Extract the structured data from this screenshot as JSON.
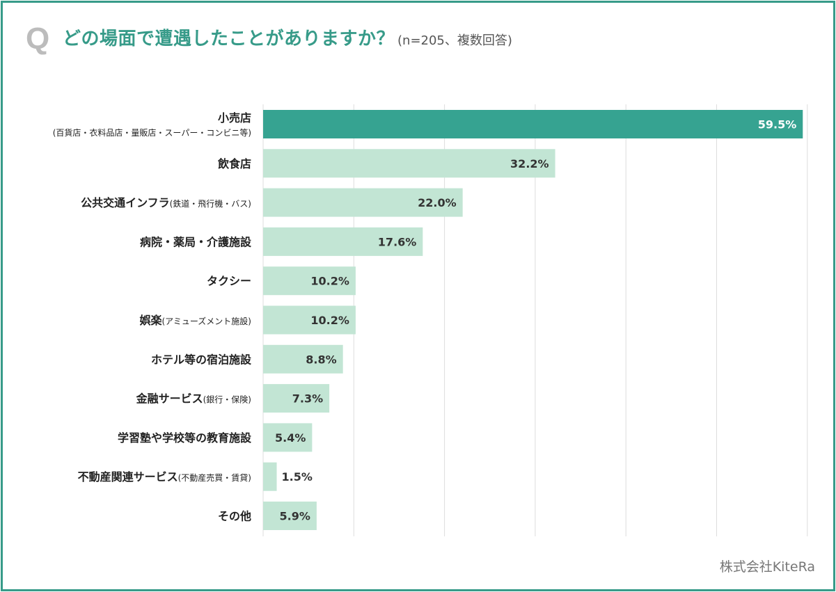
{
  "header": {
    "q_mark": "Q",
    "title": "どの場面で遭遇したことがありますか？",
    "note": "(n=205、複数回答)"
  },
  "footer": {
    "credit": "株式会社KiteRa"
  },
  "colors": {
    "accent": "#379b89",
    "bar_highlight": "#36a391",
    "bar_default": "#c2e5d4",
    "value_on_highlight": "#ffffff",
    "value_default": "#333333",
    "grid": "#dddddd"
  },
  "chart_data": {
    "type": "bar",
    "orientation": "horizontal",
    "title": "どの場面で遭遇したことがありますか？",
    "xlabel": "",
    "ylabel": "",
    "xlim": [
      0,
      60
    ],
    "grid": true,
    "unit": "%",
    "categories": [
      {
        "label": "小売店",
        "sub": "(百貨店・衣料品店・量販店・スーパー・コンビニ等)",
        "note": ""
      },
      {
        "label": "飲食店",
        "sub": "",
        "note": ""
      },
      {
        "label": "公共交通インフラ",
        "sub": "",
        "note": "(鉄道・飛行機・バス)"
      },
      {
        "label": "病院・薬局・介護施設",
        "sub": "",
        "note": ""
      },
      {
        "label": "タクシー",
        "sub": "",
        "note": ""
      },
      {
        "label": "娯楽",
        "sub": "",
        "note": "(アミューズメント施設)"
      },
      {
        "label": "ホテル等の宿泊施設",
        "sub": "",
        "note": ""
      },
      {
        "label": "金融サービス",
        "sub": "",
        "note": "(銀行・保険)"
      },
      {
        "label": "学習塾や学校等の教育施設",
        "sub": "",
        "note": ""
      },
      {
        "label": "不動産関連サービス",
        "sub": "",
        "note": "(不動産売買・賃貸)"
      },
      {
        "label": "その他",
        "sub": "",
        "note": ""
      }
    ],
    "values": [
      59.5,
      32.2,
      22.0,
      17.6,
      10.2,
      10.2,
      8.8,
      7.3,
      5.4,
      1.5,
      5.9
    ],
    "value_labels": [
      "59.5%",
      "32.2%",
      "22.0%",
      "17.6%",
      "10.2%",
      "10.2%",
      "8.8%",
      "7.3%",
      "5.4%",
      "1.5%",
      "5.9%"
    ],
    "highlight_index": 0
  }
}
